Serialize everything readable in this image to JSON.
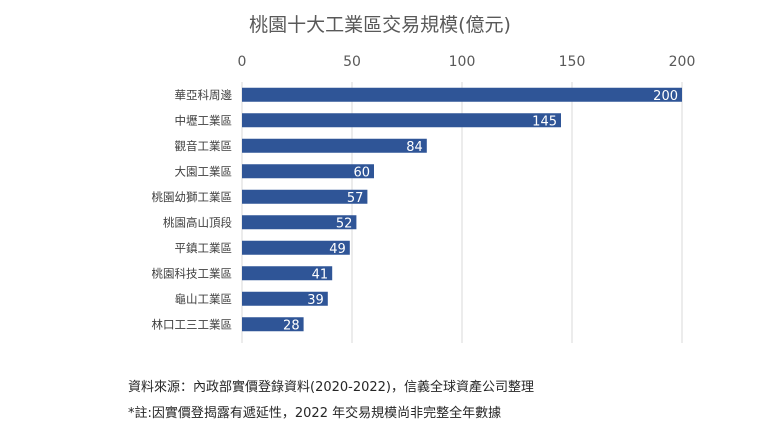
{
  "chart_data": {
    "type": "bar",
    "orientation": "horizontal",
    "title": "桃園十大工業區交易規模(億元)",
    "categories": [
      "華亞科周邊",
      "中壢工業區",
      "觀音工業區",
      "大園工業區",
      "桃園幼獅工業區",
      "桃園高山頂段",
      "平鎮工業區",
      "桃園科技工業區",
      "龜山工業區",
      "林口工三工業區"
    ],
    "values": [
      200,
      145,
      84,
      60,
      57,
      52,
      49,
      41,
      39,
      28
    ],
    "xlim": [
      0,
      200
    ],
    "xticks": [
      0,
      50,
      100,
      150,
      200
    ],
    "x_axis_position": "top",
    "grid": true,
    "bar_color": "#2f5597",
    "data_labels": "inside-end"
  },
  "notes": {
    "source": "資料來源：內政部實價登錄資料(2020-2022)，信義全球資產公司整理",
    "footnote": "*註:因實價登揭露有遞延性，2022 年交易規模尚非完整全年數據"
  }
}
